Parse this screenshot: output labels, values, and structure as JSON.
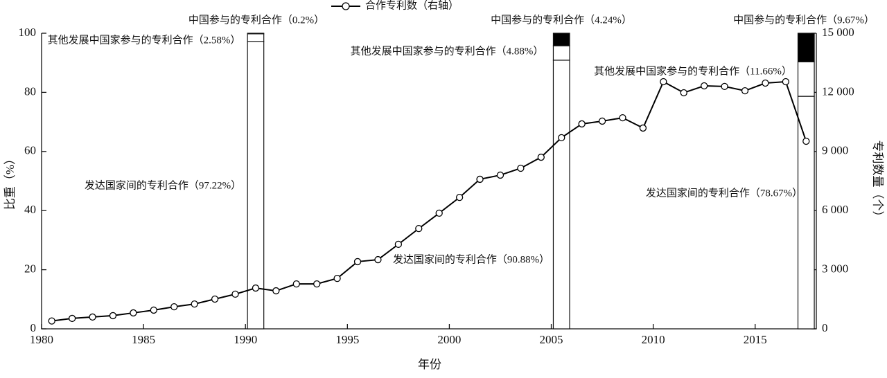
{
  "chart_data": [
    {
      "type": "bar",
      "x": [
        1990,
        2005,
        2017
      ],
      "series": [
        {
          "color": "#ffffff",
          "values": [
            97.22,
            90.88,
            78.67
          ],
          "value_labels": [
            "发达国家间的专利合作（97.22%）",
            "发达国家间的专利合作（90.88%）",
            "发达国家间的专利合作（78.67%）"
          ]
        },
        {
          "color": "#ffffff",
          "values": [
            2.58,
            4.88,
            11.66
          ],
          "value_labels": [
            "其他发展中国家参与的专利合作（2.58%）",
            "其他发展中国家参与的专利合作（4.88%）",
            "其他发展中国家参与的专利合作（11.66%）"
          ]
        },
        {
          "color": "#000000",
          "values": [
            0.2,
            4.24,
            9.67
          ],
          "value_labels": [
            "中国参与的专利合作（0.2%）",
            "中国参与的专利合作（4.24%）",
            "中国参与的专利合作（9.67%）"
          ]
        }
      ],
      "xlim": [
        1980,
        2018
      ],
      "xticks": [
        1980,
        1985,
        1990,
        1995,
        2000,
        2005,
        2010,
        2015
      ],
      "ylim": [
        0,
        100
      ],
      "yticks": [
        0,
        20,
        40,
        60,
        80,
        100
      ],
      "xlabel": "年份",
      "ylabel": "比重（%）"
    },
    {
      "type": "line",
      "name": "合作专利数（右轴）",
      "axis": "y2",
      "color": "#000000",
      "x": [
        1980,
        1981,
        1982,
        1983,
        1984,
        1985,
        1986,
        1987,
        1988,
        1989,
        1990,
        1991,
        1992,
        1993,
        1994,
        1995,
        1996,
        1997,
        1998,
        1999,
        2000,
        2001,
        2002,
        2003,
        2004,
        2005,
        2006,
        2007,
        2008,
        2009,
        2010,
        2011,
        2012,
        2013,
        2014,
        2015,
        2016,
        2017
      ],
      "values": [
        400,
        530,
        600,
        670,
        810,
        950,
        1120,
        1260,
        1510,
        1760,
        2070,
        1930,
        2280,
        2280,
        2560,
        3410,
        3510,
        4290,
        5090,
        5870,
        6670,
        7590,
        7800,
        8150,
        8710,
        9700,
        10400,
        10540,
        10710,
        10190,
        12540,
        11980,
        12330,
        12300,
        12080,
        12470,
        12540,
        9520
      ],
      "y2lim": [
        0,
        15000
      ],
      "y2ticks": [
        0,
        {
          "value": 3000,
          "label": "3 000"
        },
        {
          "value": 6000,
          "label": "6 000"
        },
        {
          "value": 9000,
          "label": "9 000"
        },
        {
          "value": 12000,
          "label": "12 000"
        },
        {
          "value": 15000,
          "label": "15 000"
        }
      ],
      "y2label": "专利数量（个）"
    }
  ]
}
